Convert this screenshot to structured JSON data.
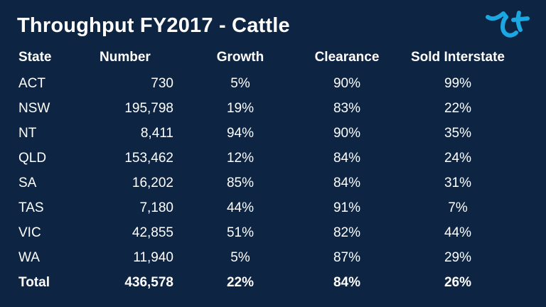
{
  "slide": {
    "title": "Throughput FY2017 - Cattle",
    "accent_color": "#1ba7e1",
    "background_color": "#0d2442"
  },
  "table": {
    "headers": [
      "State",
      "Number",
      "Growth",
      "Clearance",
      "Sold Interstate"
    ],
    "rows": [
      [
        "ACT",
        "730",
        "5%",
        "90%",
        "99%"
      ],
      [
        "NSW",
        "195,798",
        "19%",
        "83%",
        "22%"
      ],
      [
        "NT",
        "8,411",
        "94%",
        "90%",
        "35%"
      ],
      [
        "QLD",
        "153,462",
        "12%",
        "84%",
        "24%"
      ],
      [
        "SA",
        "16,202",
        "85%",
        "84%",
        "31%"
      ],
      [
        "TAS",
        "7,180",
        "44%",
        "91%",
        "7%"
      ],
      [
        "VIC",
        "42,855",
        "51%",
        "82%",
        "44%"
      ],
      [
        "WA",
        "11,940",
        "5%",
        "87%",
        "29%"
      ]
    ],
    "total": [
      "Total",
      "436,578",
      "22%",
      "84%",
      "26%"
    ]
  },
  "logo": {
    "icon": "tf-logo-icon"
  }
}
